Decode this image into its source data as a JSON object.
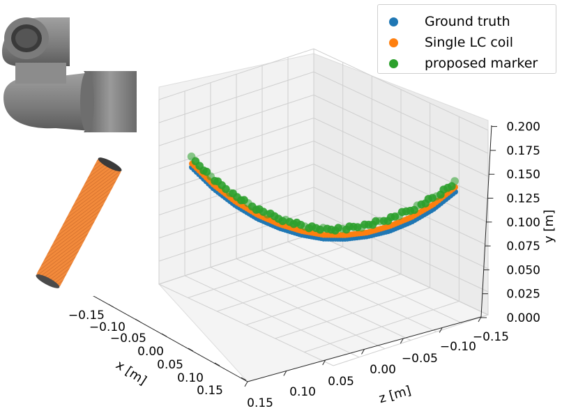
{
  "chart_data": {
    "type": "scatter",
    "projection": "3d",
    "xlabel": "x [m]",
    "ylabel": "y [m]",
    "zlabel": "z [m]",
    "xlim": [
      -0.15,
      0.15
    ],
    "ylim": [
      0.0,
      0.2
    ],
    "zlim": [
      -0.15,
      0.15
    ],
    "x_ticks": [
      "−0.15",
      "−0.10",
      "−0.05",
      "0.00",
      "0.05",
      "0.10",
      "0.15"
    ],
    "y_ticks": [
      "0.000",
      "0.025",
      "0.050",
      "0.075",
      "0.100",
      "0.125",
      "0.150",
      "0.175",
      "0.200"
    ],
    "z_ticks": [
      "0.15",
      "0.10",
      "0.05",
      "0.00",
      "−0.05",
      "−0.10",
      "−0.15"
    ],
    "grid": true,
    "legend_position": "top-right",
    "series": [
      {
        "name": "Ground truth",
        "color": "#1f77b4",
        "x": [
          -0.12,
          -0.1,
          -0.08,
          -0.06,
          -0.04,
          -0.02,
          0.0,
          0.02,
          0.04,
          0.06,
          0.08,
          0.1,
          0.12
        ],
        "y": [
          0.13,
          0.109,
          0.093,
          0.081,
          0.073,
          0.068,
          0.066,
          0.068,
          0.073,
          0.081,
          0.093,
          0.109,
          0.13
        ],
        "z": [
          0.12,
          0.1,
          0.08,
          0.06,
          0.04,
          0.02,
          0.0,
          -0.02,
          -0.04,
          -0.06,
          -0.08,
          -0.1,
          -0.12
        ]
      },
      {
        "name": "Single LC coil",
        "color": "#ff7f0e",
        "x": [
          -0.12,
          -0.1,
          -0.08,
          -0.06,
          -0.04,
          -0.02,
          0.0,
          0.02,
          0.04,
          0.06,
          0.08,
          0.1,
          0.12
        ],
        "y": [
          0.134,
          0.113,
          0.097,
          0.085,
          0.077,
          0.072,
          0.07,
          0.072,
          0.077,
          0.086,
          0.098,
          0.114,
          0.135
        ],
        "z": [
          0.12,
          0.1,
          0.08,
          0.06,
          0.04,
          0.02,
          0.0,
          -0.02,
          -0.04,
          -0.06,
          -0.08,
          -0.1,
          -0.12
        ]
      },
      {
        "name": "proposed marker",
        "color": "#2ca02c",
        "x": [
          -0.12,
          -0.1,
          -0.08,
          -0.06,
          -0.04,
          -0.02,
          0.0,
          0.02,
          0.04,
          0.06,
          0.08,
          0.1,
          0.12
        ],
        "y": [
          0.14,
          0.119,
          0.103,
          0.091,
          0.083,
          0.078,
          0.076,
          0.079,
          0.085,
          0.094,
          0.106,
          0.121,
          0.14
        ],
        "z": [
          0.12,
          0.1,
          0.08,
          0.06,
          0.04,
          0.02,
          0.0,
          -0.02,
          -0.04,
          -0.06,
          -0.08,
          -0.1,
          -0.12
        ]
      }
    ]
  },
  "legend": {
    "items": [
      {
        "label": "Ground truth",
        "color": "#1f77b4"
      },
      {
        "label": "Single LC coil",
        "color": "#ff7f0e"
      },
      {
        "label": "proposed marker",
        "color": "#2ca02c"
      }
    ]
  },
  "insets": {
    "pipe_icon": "gray-pipe-fitting-render",
    "coil_icon": "orange-coil-cylinder-render",
    "pipe_color": "#8a8a8a",
    "coil_color": "#f0873a"
  }
}
